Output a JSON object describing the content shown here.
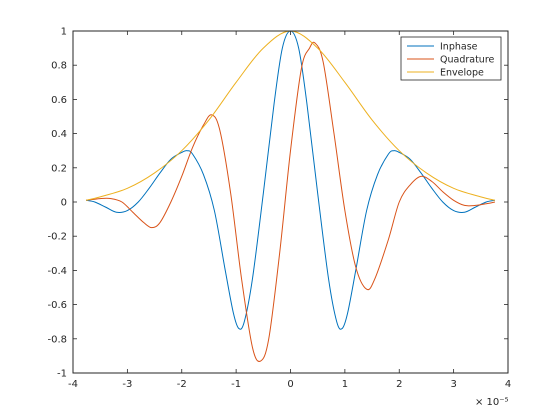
{
  "chart_data": {
    "type": "line",
    "title": "",
    "xlabel": "",
    "ylabel": "",
    "x_exponent_label": "× 10⁻⁵",
    "xlim": [
      -4,
      4
    ],
    "ylim": [
      -1,
      1
    ],
    "xticks": [
      -4,
      -3,
      -2,
      -1,
      0,
      1,
      2,
      3,
      4
    ],
    "yticks": [
      -1,
      -0.8,
      -0.6,
      -0.4,
      -0.2,
      0,
      0.2,
      0.4,
      0.6,
      0.8,
      1
    ],
    "grid": false,
    "legend_position": "top-right",
    "series": [
      {
        "name": "Inphase",
        "color": "#0072BD",
        "points": [
          [
            -3.76,
            0.01
          ],
          [
            -3.6,
            0.0
          ],
          [
            -3.4,
            -0.03
          ],
          [
            -3.2,
            -0.06
          ],
          [
            -3.0,
            -0.05
          ],
          [
            -2.8,
            0.0
          ],
          [
            -2.6,
            0.08
          ],
          [
            -2.4,
            0.17
          ],
          [
            -2.2,
            0.25
          ],
          [
            -2.0,
            0.29
          ],
          [
            -1.9,
            0.3
          ],
          [
            -1.8,
            0.28
          ],
          [
            -1.6,
            0.16
          ],
          [
            -1.4,
            -0.05
          ],
          [
            -1.2,
            -0.4
          ],
          [
            -1.05,
            -0.65
          ],
          [
            -0.95,
            -0.74
          ],
          [
            -0.85,
            -0.7
          ],
          [
            -0.7,
            -0.45
          ],
          [
            -0.5,
            0.05
          ],
          [
            -0.3,
            0.58
          ],
          [
            -0.15,
            0.9
          ],
          [
            0.0,
            1.0
          ],
          [
            0.15,
            0.9
          ],
          [
            0.3,
            0.58
          ],
          [
            0.5,
            0.05
          ],
          [
            0.7,
            -0.45
          ],
          [
            0.85,
            -0.7
          ],
          [
            0.95,
            -0.74
          ],
          [
            1.05,
            -0.65
          ],
          [
            1.2,
            -0.4
          ],
          [
            1.4,
            -0.05
          ],
          [
            1.6,
            0.16
          ],
          [
            1.8,
            0.28
          ],
          [
            1.9,
            0.3
          ],
          [
            2.0,
            0.29
          ],
          [
            2.2,
            0.25
          ],
          [
            2.4,
            0.17
          ],
          [
            2.6,
            0.08
          ],
          [
            2.8,
            0.0
          ],
          [
            3.0,
            -0.05
          ],
          [
            3.2,
            -0.06
          ],
          [
            3.4,
            -0.03
          ],
          [
            3.6,
            0.0
          ],
          [
            3.76,
            0.01
          ]
        ]
      },
      {
        "name": "Quadrature",
        "color": "#D95319",
        "points": [
          [
            -3.76,
            0.01
          ],
          [
            -3.5,
            0.02
          ],
          [
            -3.3,
            0.02
          ],
          [
            -3.1,
            0.0
          ],
          [
            -2.9,
            -0.06
          ],
          [
            -2.7,
            -0.12
          ],
          [
            -2.55,
            -0.15
          ],
          [
            -2.4,
            -0.12
          ],
          [
            -2.2,
            0.0
          ],
          [
            -2.0,
            0.15
          ],
          [
            -1.8,
            0.32
          ],
          [
            -1.6,
            0.45
          ],
          [
            -1.45,
            0.51
          ],
          [
            -1.3,
            0.42
          ],
          [
            -1.1,
            0.05
          ],
          [
            -0.9,
            -0.45
          ],
          [
            -0.7,
            -0.85
          ],
          [
            -0.55,
            -0.93
          ],
          [
            -0.4,
            -0.8
          ],
          [
            -0.2,
            -0.3
          ],
          [
            0.0,
            0.3
          ],
          [
            0.2,
            0.78
          ],
          [
            0.35,
            0.9
          ],
          [
            0.45,
            0.93
          ],
          [
            0.6,
            0.82
          ],
          [
            0.8,
            0.4
          ],
          [
            1.0,
            -0.05
          ],
          [
            1.2,
            -0.38
          ],
          [
            1.4,
            -0.51
          ],
          [
            1.55,
            -0.45
          ],
          [
            1.8,
            -0.22
          ],
          [
            2.0,
            0.0
          ],
          [
            2.2,
            0.1
          ],
          [
            2.4,
            0.15
          ],
          [
            2.6,
            0.12
          ],
          [
            2.8,
            0.06
          ],
          [
            3.0,
            0.01
          ],
          [
            3.2,
            -0.02
          ],
          [
            3.4,
            -0.02
          ],
          [
            3.6,
            -0.01
          ],
          [
            3.76,
            0.0
          ]
        ]
      },
      {
        "name": "Envelope",
        "color": "#EDB120",
        "points": [
          [
            -3.76,
            0.01
          ],
          [
            -3.5,
            0.03
          ],
          [
            -3.0,
            0.08
          ],
          [
            -2.5,
            0.17
          ],
          [
            -2.0,
            0.3
          ],
          [
            -1.5,
            0.48
          ],
          [
            -1.0,
            0.7
          ],
          [
            -0.5,
            0.9
          ],
          [
            0.0,
            1.0
          ],
          [
            0.5,
            0.9
          ],
          [
            1.0,
            0.7
          ],
          [
            1.5,
            0.48
          ],
          [
            2.0,
            0.3
          ],
          [
            2.5,
            0.17
          ],
          [
            3.0,
            0.08
          ],
          [
            3.5,
            0.03
          ],
          [
            3.76,
            0.01
          ]
        ]
      }
    ]
  }
}
